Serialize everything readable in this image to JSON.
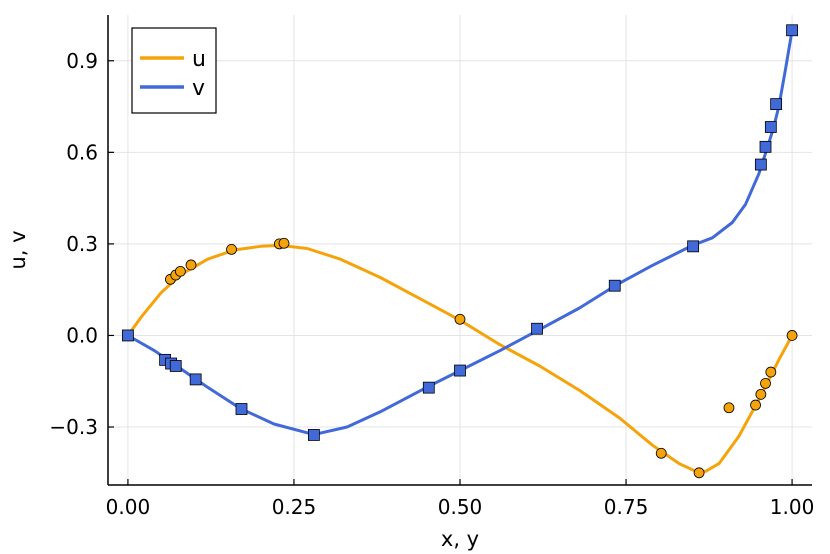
{
  "chart_data": {
    "type": "line",
    "xlabel": "x, y",
    "ylabel": "u, v",
    "xlim": [
      -0.03,
      1.03
    ],
    "ylim": [
      -0.49,
      1.05
    ],
    "xticks": [
      0.0,
      0.25,
      0.5,
      0.75,
      1.0
    ],
    "xtick_labels": [
      "0.00",
      "0.25",
      "0.50",
      "0.75",
      "1.00"
    ],
    "yticks": [
      -0.3,
      0.0,
      0.3,
      0.6,
      0.9
    ],
    "ytick_labels": [
      "−0.3",
      "0.0",
      "0.3",
      "0.6",
      "0.9"
    ],
    "grid": true,
    "legend_position": "top-left",
    "series": [
      {
        "name": "u",
        "color": "#f5a30b",
        "marker": "circle",
        "line_x": [
          0.0,
          0.02,
          0.05,
          0.08,
          0.12,
          0.16,
          0.2,
          0.23,
          0.27,
          0.32,
          0.38,
          0.44,
          0.5,
          0.56,
          0.62,
          0.68,
          0.74,
          0.79,
          0.83,
          0.855,
          0.87,
          0.89,
          0.92,
          0.95,
          0.98,
          1.0
        ],
        "line_y": [
          0.0,
          0.06,
          0.14,
          0.2,
          0.25,
          0.28,
          0.292,
          0.295,
          0.285,
          0.25,
          0.19,
          0.12,
          0.05,
          -0.03,
          -0.1,
          -0.18,
          -0.27,
          -0.36,
          -0.42,
          -0.445,
          -0.445,
          -0.42,
          -0.33,
          -0.21,
          -0.08,
          0.0
        ],
        "points_x": [
          0.064,
          0.072,
          0.079,
          0.095,
          0.156,
          0.228,
          0.235,
          0.5,
          0.803,
          0.86,
          0.905,
          0.945,
          0.953,
          0.96,
          0.968,
          1.0
        ],
        "points_y": [
          0.184,
          0.198,
          0.21,
          0.231,
          0.282,
          0.3,
          0.302,
          0.053,
          -0.386,
          -0.45,
          -0.237,
          -0.228,
          -0.193,
          -0.157,
          -0.12,
          0.0
        ]
      },
      {
        "name": "v",
        "color": "#4169d8",
        "marker": "square",
        "line_x": [
          0.0,
          0.04,
          0.08,
          0.12,
          0.17,
          0.22,
          0.28,
          0.33,
          0.38,
          0.45,
          0.5,
          0.56,
          0.62,
          0.68,
          0.735,
          0.79,
          0.85,
          0.88,
          0.91,
          0.93,
          0.95,
          0.962,
          0.972,
          0.98,
          0.99,
          1.0
        ],
        "line_y": [
          0.0,
          -0.05,
          -0.11,
          -0.17,
          -0.24,
          -0.29,
          -0.325,
          -0.3,
          -0.25,
          -0.17,
          -0.115,
          -0.05,
          0.02,
          0.09,
          0.165,
          0.23,
          0.295,
          0.32,
          0.37,
          0.43,
          0.53,
          0.61,
          0.68,
          0.75,
          0.87,
          1.0
        ],
        "points_x": [
          0.0,
          0.056,
          0.065,
          0.072,
          0.102,
          0.171,
          0.28,
          0.453,
          0.5,
          0.616,
          0.733,
          0.851,
          0.953,
          0.96,
          0.968,
          0.976,
          1.0
        ],
        "points_y": [
          0.0,
          -0.08,
          -0.092,
          -0.1,
          -0.144,
          -0.241,
          -0.326,
          -0.171,
          -0.115,
          0.022,
          0.163,
          0.292,
          0.56,
          0.618,
          0.683,
          0.758,
          1.0
        ]
      }
    ]
  }
}
